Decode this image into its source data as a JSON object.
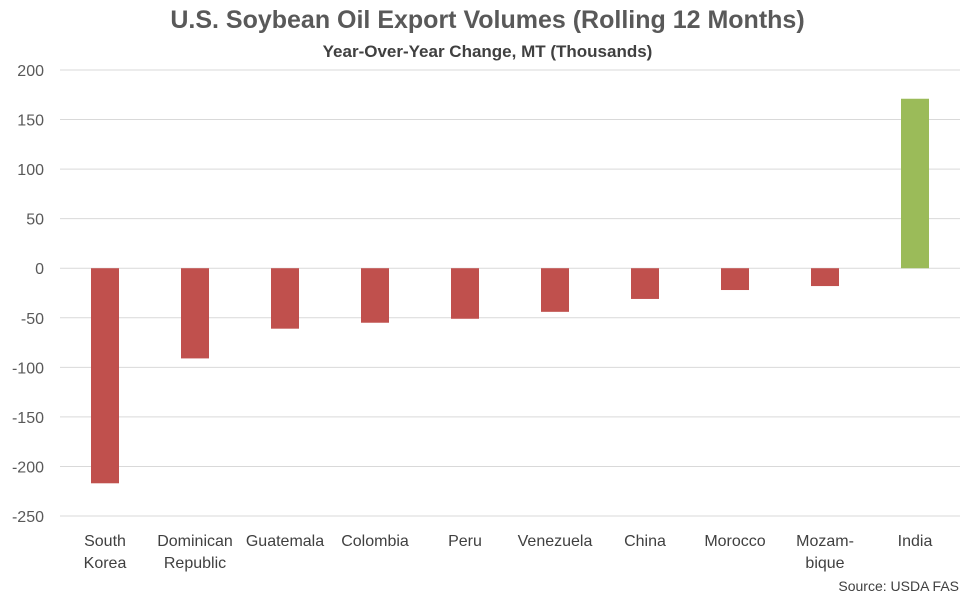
{
  "chart_data": {
    "type": "bar",
    "title": "U.S. Soybean Oil Export Volumes (Rolling 12 Months)",
    "subtitle": "Year-Over-Year Change, MT (Thousands)",
    "source": "Source: USDA FAS",
    "categories": [
      [
        "South",
        "Korea"
      ],
      [
        "Dominican",
        "Republic"
      ],
      [
        "Guatemala"
      ],
      [
        "Colombia"
      ],
      [
        "Peru"
      ],
      [
        "Venezuela"
      ],
      [
        "China"
      ],
      [
        "Morocco"
      ],
      [
        "Mozam-",
        "bique"
      ],
      [
        "India"
      ]
    ],
    "values": [
      -217,
      -91,
      -61,
      -55,
      -51,
      -44,
      -31,
      -22,
      -18,
      171
    ],
    "colors": [
      "#c0504d",
      "#c0504d",
      "#c0504d",
      "#c0504d",
      "#c0504d",
      "#c0504d",
      "#c0504d",
      "#c0504d",
      "#c0504d",
      "#9bbb59"
    ],
    "ylim": [
      -250,
      200
    ],
    "yticks": [
      200,
      150,
      100,
      50,
      0,
      -50,
      -100,
      -150,
      -200,
      -250
    ],
    "grid": true,
    "xlabel": "",
    "ylabel": ""
  }
}
